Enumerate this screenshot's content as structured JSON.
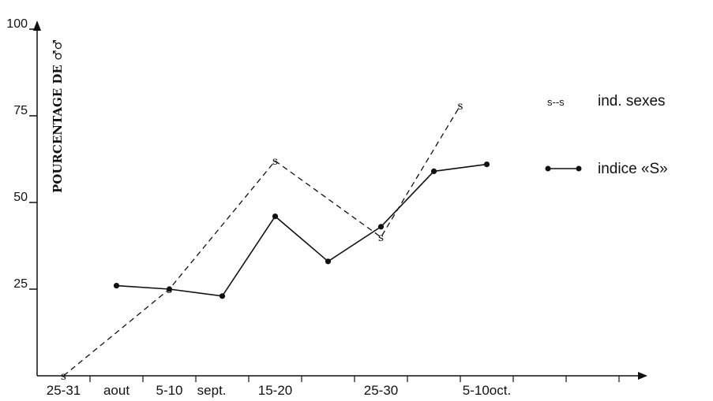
{
  "chart_data": {
    "type": "line",
    "ylabel": "POURCENTAGE DE ♂♂",
    "yticks": [
      "100",
      "75",
      "50",
      "25"
    ],
    "ytick_values": [
      100,
      75,
      50,
      25
    ],
    "ylim": [
      0,
      100
    ],
    "xlim": [
      0,
      12
    ],
    "xtick_positions": [
      1,
      2,
      3,
      4,
      5,
      6,
      7,
      8,
      9,
      10,
      11
    ],
    "xlabels": [
      {
        "text": "25-31",
        "x": 0.5
      },
      {
        "text": "aout",
        "x": 1.5
      },
      {
        "text": "5-10",
        "x": 2.5
      },
      {
        "text": "sept.",
        "x": 3.3
      },
      {
        "text": "15-20",
        "x": 4.5
      },
      {
        "text": "25-30",
        "x": 6.5
      },
      {
        "text": "5-10oct.",
        "x": 8.5
      }
    ],
    "series": [
      {
        "name": "ind. sexes",
        "legend_marker": "s--s",
        "style": "dashed",
        "marker": "s",
        "points": [
          {
            "x": 0.5,
            "y": 0
          },
          {
            "x": 2.5,
            "y": 25
          },
          {
            "x": 4.5,
            "y": 62
          },
          {
            "x": 6.5,
            "y": 40
          },
          {
            "x": 8.0,
            "y": 78
          }
        ]
      },
      {
        "name": "indice «S»",
        "style": "solid",
        "marker": "dot",
        "points": [
          {
            "x": 1.5,
            "y": 26
          },
          {
            "x": 2.5,
            "y": 25
          },
          {
            "x": 3.5,
            "y": 23
          },
          {
            "x": 4.5,
            "y": 46
          },
          {
            "x": 5.5,
            "y": 33
          },
          {
            "x": 6.5,
            "y": 43
          },
          {
            "x": 7.5,
            "y": 59
          },
          {
            "x": 8.5,
            "y": 61
          }
        ]
      }
    ],
    "legend_placement": "right"
  }
}
